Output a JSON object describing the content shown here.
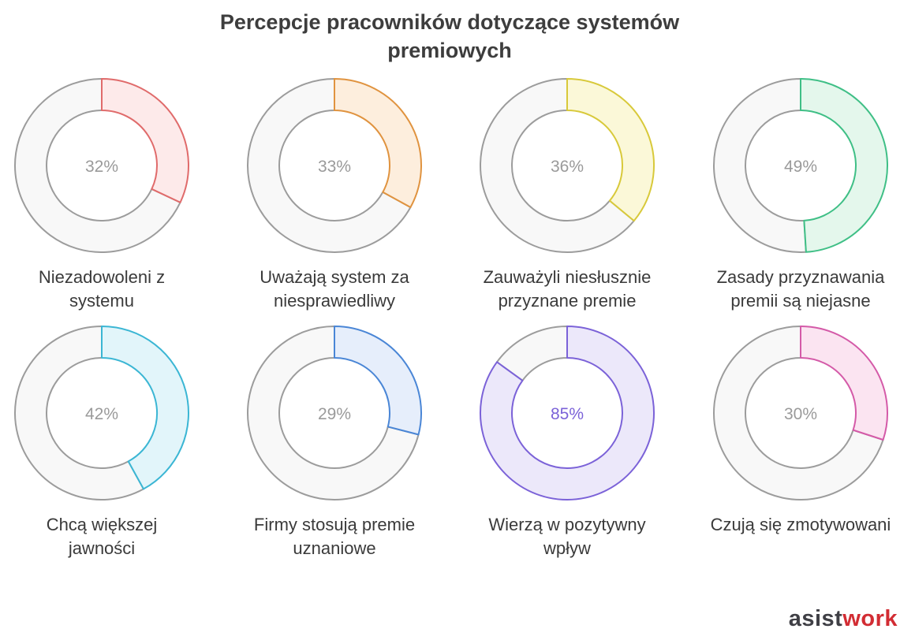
{
  "chart_data": {
    "type": "pie",
    "title_lines": [
      "Percepcje pracowników dotyczące systemów",
      "premiowych"
    ],
    "series": [
      {
        "name": "Niezadowoleni z systemu",
        "label_lines": [
          "Niezadowoleni z",
          "systemu"
        ],
        "value": 32,
        "display": "32%",
        "stroke": "#e06b6b",
        "fill": "#fdeaea",
        "text_color": "#9a9a9a"
      },
      {
        "name": "Uważają system za niesprawiedliwy",
        "label_lines": [
          "Uważają system za",
          "niesprawiedliwy"
        ],
        "value": 33,
        "display": "33%",
        "stroke": "#e0933f",
        "fill": "#fdeedd",
        "text_color": "#9a9a9a"
      },
      {
        "name": "Zauważyli niesłusznie przyznane premie",
        "label_lines": [
          "Zauważyli niesłusznie",
          "przyznane premie"
        ],
        "value": 36,
        "display": "36%",
        "stroke": "#d8c93a",
        "fill": "#fbf8d8",
        "text_color": "#9a9a9a"
      },
      {
        "name": "Zasady przyznawania premii są niejasne",
        "label_lines": [
          "Zasady przyznawania",
          "premii są niejasne"
        ],
        "value": 49,
        "display": "49%",
        "stroke": "#3fbf86",
        "fill": "#e4f7ec",
        "text_color": "#9a9a9a"
      },
      {
        "name": "Chcą większej jawności",
        "label_lines": [
          "Chcą większej",
          "jawności"
        ],
        "value": 42,
        "display": "42%",
        "stroke": "#3bb6d4",
        "fill": "#e2f5fa",
        "text_color": "#9a9a9a"
      },
      {
        "name": "Firmy stosują premie uznaniowe",
        "label_lines": [
          "Firmy stosują premie",
          "uznaniowe"
        ],
        "value": 29,
        "display": "29%",
        "stroke": "#4a86d6",
        "fill": "#e6eefb",
        "text_color": "#9a9a9a"
      },
      {
        "name": "Wierzą w pozytywny wpływ",
        "label_lines": [
          "Wierzą w pozytywny",
          "wpływ"
        ],
        "value": 85,
        "display": "85%",
        "stroke": "#7b62d8",
        "fill": "#ece8fa",
        "text_color": "#7b62d8"
      },
      {
        "name": "Czują się zmotywowani",
        "label_lines": [
          "Czują się zmotywowani"
        ],
        "value": 30,
        "display": "30%",
        "stroke": "#d45aa8",
        "fill": "#fbe4f1",
        "text_color": "#9a9a9a"
      }
    ],
    "remainder_fill": "#f8f8f8",
    "remainder_stroke": "#9c9c9c"
  },
  "brand": {
    "part1": "asist",
    "part2": "work"
  }
}
